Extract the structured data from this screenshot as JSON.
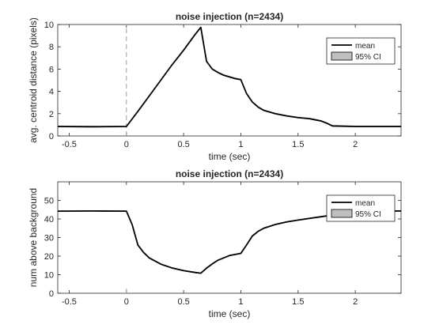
{
  "chart_data": [
    {
      "type": "line",
      "title": "noise injection (n=2434)",
      "xlabel": "time (sec)",
      "ylabel": "avg. centroid distance (pixels)",
      "xlim": [
        -0.6,
        2.4
      ],
      "ylim": [
        0,
        10
      ],
      "xticks": [
        -0.5,
        0,
        0.5,
        1,
        1.5,
        2
      ],
      "xtick_labels": [
        "-0.5",
        "0",
        "0.5",
        "1",
        "1.5",
        "2"
      ],
      "yticks": [
        0,
        2,
        4,
        6,
        8,
        10
      ],
      "ytick_labels": [
        "0",
        "2",
        "4",
        "6",
        "8",
        "10"
      ],
      "grid": false,
      "legend_position": "top-right",
      "legend": [
        {
          "label": "mean",
          "kind": "line",
          "color": "#000000"
        },
        {
          "label": "95% CI",
          "kind": "patch",
          "color": "#bfbfbf"
        }
      ],
      "onset_marker": {
        "x": 0,
        "style": "dashed",
        "color": "#999999",
        "y_range": [
          0,
          10
        ]
      },
      "series": [
        {
          "name": "mean",
          "x": [
            -0.6,
            -0.3,
            0.0,
            0.1,
            0.2,
            0.3,
            0.4,
            0.5,
            0.6,
            0.65,
            0.7,
            0.75,
            0.8,
            0.85,
            0.9,
            0.95,
            1.0,
            1.05,
            1.1,
            1.15,
            1.2,
            1.3,
            1.4,
            1.5,
            1.6,
            1.65,
            1.7,
            1.75,
            1.8,
            2.0,
            2.2,
            2.4
          ],
          "y": [
            0.85,
            0.83,
            0.85,
            2.2,
            3.6,
            5.0,
            6.4,
            7.7,
            9.1,
            9.75,
            6.7,
            6.0,
            5.7,
            5.45,
            5.3,
            5.15,
            5.05,
            3.8,
            3.05,
            2.6,
            2.3,
            2.0,
            1.8,
            1.65,
            1.55,
            1.45,
            1.35,
            1.15,
            0.9,
            0.85,
            0.85,
            0.85
          ],
          "ci_halfwidth": 0.08
        }
      ]
    },
    {
      "type": "line",
      "title": "noise injection (n=2434)",
      "xlabel": "time (sec)",
      "ylabel": "num above background",
      "xlim": [
        -0.6,
        2.4
      ],
      "ylim": [
        0,
        60
      ],
      "xticks": [
        -0.5,
        0,
        0.5,
        1,
        1.5,
        2
      ],
      "xtick_labels": [
        "-0.5",
        "0",
        "0.5",
        "1",
        "1.5",
        "2"
      ],
      "yticks": [
        0,
        10,
        20,
        30,
        40,
        50
      ],
      "ytick_labels": [
        "0",
        "10",
        "20",
        "30",
        "40",
        "50"
      ],
      "grid": false,
      "legend_position": "top-right",
      "legend": [
        {
          "label": "mean",
          "kind": "line",
          "color": "#000000"
        },
        {
          "label": "95% CI",
          "kind": "patch",
          "color": "#bfbfbf"
        }
      ],
      "onset_marker": {
        "x": 0,
        "style": "dashed",
        "color": "#999999",
        "y_range": [
          0,
          4
        ]
      },
      "series": [
        {
          "name": "mean",
          "x": [
            -0.6,
            -0.3,
            0.0,
            0.05,
            0.1,
            0.15,
            0.2,
            0.3,
            0.4,
            0.5,
            0.6,
            0.65,
            0.7,
            0.75,
            0.8,
            0.9,
            1.0,
            1.05,
            1.1,
            1.15,
            1.2,
            1.3,
            1.4,
            1.5,
            1.6,
            1.7,
            1.8,
            1.9,
            2.0,
            2.2,
            2.4
          ],
          "y": [
            44.2,
            44.3,
            44.2,
            37,
            26,
            22,
            19,
            15.7,
            13.6,
            12.2,
            11.2,
            10.8,
            13.5,
            15.8,
            17.8,
            20.3,
            21.5,
            26,
            30.8,
            33.3,
            35,
            37,
            38.4,
            39.4,
            40.3,
            41.2,
            42.1,
            42.9,
            43.5,
            44.2,
            44.3
          ],
          "ci_halfwidth": 0.4
        }
      ]
    }
  ]
}
